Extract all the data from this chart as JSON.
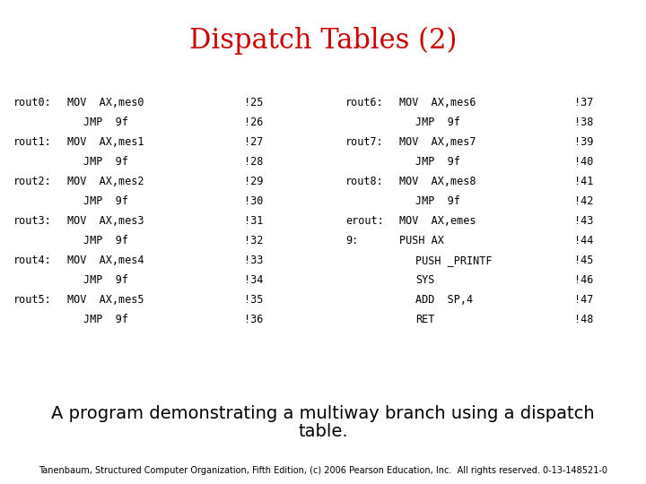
{
  "title": "Dispatch Tables (2)",
  "title_color": "#cc0000",
  "title_fontsize": 22,
  "bg_color": "#ffffff",
  "subtitle_line1": "A program demonstrating a multiway branch using a dispatch",
  "subtitle_line2": "table.",
  "subtitle_fontsize": 14,
  "footer": "Tanenbaum, Structured Computer Organization, Fifth Edition, (c) 2006 Pearson Education, Inc.  All rights reserved. 0-13-148521-0",
  "footer_fontsize": 7,
  "code_fontsize": 8.5,
  "left_lines": [
    [
      "rout0:",
      "MOV  AX,mes0",
      "!25"
    ],
    [
      "",
      "JMP  9f",
      "!26"
    ],
    [
      "rout1:",
      "MOV  AX,mes1",
      "!27"
    ],
    [
      "",
      "JMP  9f",
      "!28"
    ],
    [
      "rout2:",
      "MOV  AX,mes2",
      "!29"
    ],
    [
      "",
      "JMP  9f",
      "!30"
    ],
    [
      "rout3:",
      "MOV  AX,mes3",
      "!31"
    ],
    [
      "",
      "JMP  9f",
      "!32"
    ],
    [
      "rout4:",
      "MOV  AX,mes4",
      "!33"
    ],
    [
      "",
      "JMP  9f",
      "!34"
    ],
    [
      "rout5:",
      "MOV  AX,mes5",
      "!35"
    ],
    [
      "",
      "JMP  9f",
      "!36"
    ]
  ],
  "right_lines": [
    [
      "rout6:",
      "MOV  AX,mes6",
      "!37"
    ],
    [
      "",
      "JMP  9f",
      "!38"
    ],
    [
      "rout7:",
      "MOV  AX,mes7",
      "!39"
    ],
    [
      "",
      "JMP  9f",
      "!40"
    ],
    [
      "rout8:",
      "MOV  AX,mes8",
      "!41"
    ],
    [
      "",
      "JMP  9f",
      "!42"
    ],
    [
      "erout:",
      "MOV  AX,emes",
      "!43"
    ],
    [
      "9:",
      "PUSH AX",
      "!44"
    ],
    [
      "",
      "PUSH _PRINTF",
      "!45"
    ],
    [
      "",
      "SYS",
      "!46"
    ],
    [
      "",
      "ADD  SP,4",
      "!47"
    ],
    [
      "",
      "RET",
      "!48"
    ]
  ]
}
